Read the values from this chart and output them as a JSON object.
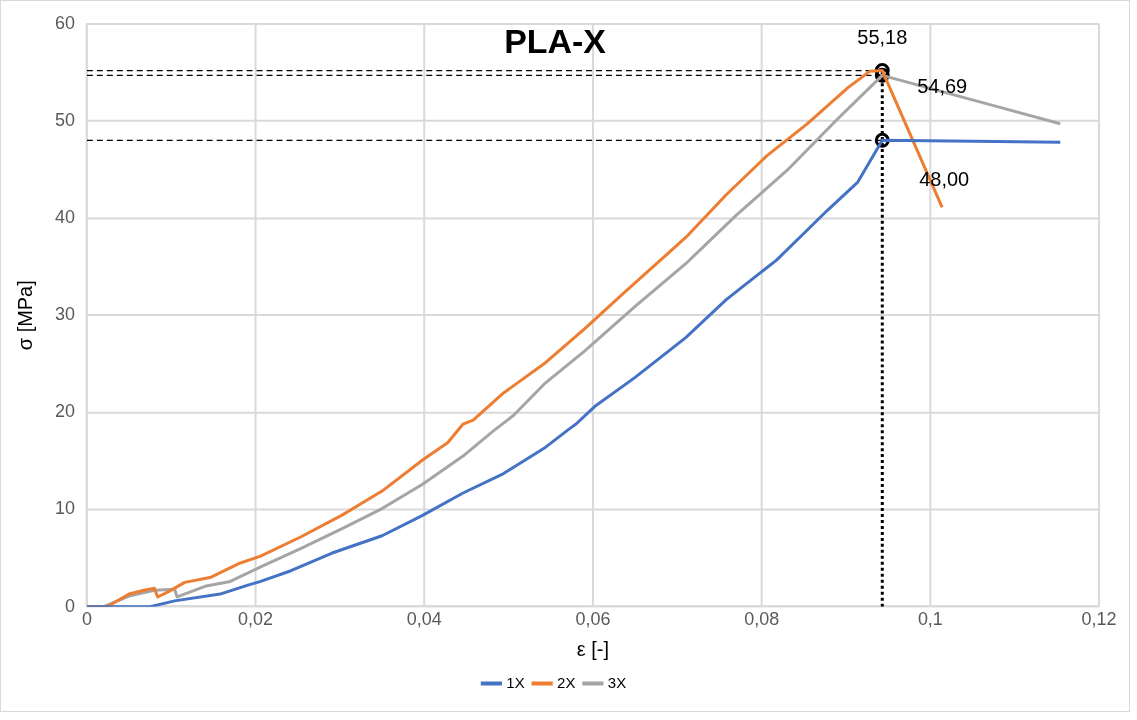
{
  "chart_data": {
    "type": "line",
    "title": "PLA-X",
    "xlabel": "ε [-]",
    "ylabel": "σ [MPa]",
    "xlim": [
      0,
      0.12
    ],
    "xticks": [
      0,
      {
        "value": 0.02,
        "label": "0,02"
      },
      {
        "value": 0.04,
        "label": "0,04"
      },
      {
        "value": 0.06,
        "label": "0,06"
      },
      {
        "value": 0.08,
        "label": "0,08"
      },
      {
        "value": 0.1,
        "label": "0,1"
      },
      {
        "value": 0.12,
        "label": "0,12"
      }
    ],
    "ylim": [
      0,
      60
    ],
    "yticks": [
      0,
      10,
      20,
      30,
      40,
      50,
      60
    ],
    "grid": true,
    "legend": "bottom",
    "marker": "none",
    "line_style": "solid",
    "series": [
      {
        "name": "1X",
        "color": "#4472c4",
        "x": [
          0,
          0.0075,
          0.0104,
          0.0158,
          0.019,
          0.0206,
          0.0242,
          0.029,
          0.035,
          0.0398,
          0.0446,
          0.0494,
          0.0542,
          0.0572,
          0.058,
          0.0602,
          0.065,
          0.071,
          0.0758,
          0.0818,
          0.0878,
          0.0914,
          0.0943,
          0.1154
        ],
        "values": [
          0,
          0,
          0.6,
          1.3,
          2.2,
          2.6,
          3.7,
          5.5,
          7.3,
          9.4,
          11.7,
          13.7,
          16.3,
          18.3,
          18.8,
          20.6,
          23.6,
          27.7,
          31.6,
          35.7,
          40.8,
          43.7,
          48.0,
          47.8
        ]
      },
      {
        "name": "2X",
        "color": "#ed7d31",
        "x": [
          0,
          0.0024,
          0.005,
          0.0068,
          0.008,
          0.0084,
          0.0098,
          0.0116,
          0.0146,
          0.0182,
          0.0206,
          0.0254,
          0.0302,
          0.035,
          0.0398,
          0.0428,
          0.0446,
          0.0458,
          0.0494,
          0.0542,
          0.059,
          0.0638,
          0.071,
          0.0758,
          0.0806,
          0.0854,
          0.0902,
          0.0928,
          0.0943,
          0.1014
        ],
        "values": [
          0,
          0,
          1.3,
          1.7,
          1.9,
          1.0,
          1.6,
          2.5,
          3.0,
          4.5,
          5.2,
          7.2,
          9.4,
          11.9,
          15.1,
          16.9,
          18.8,
          19.2,
          22.0,
          25.0,
          28.6,
          32.4,
          38.0,
          42.4,
          46.4,
          49.7,
          53.4,
          55.1,
          55.18,
          41.1
        ]
      },
      {
        "name": "3X",
        "color": "#a5a5a5",
        "x": [
          0,
          0.002,
          0.005,
          0.008,
          0.0104,
          0.0107,
          0.0122,
          0.014,
          0.017,
          0.0206,
          0.0254,
          0.0302,
          0.035,
          0.0398,
          0.0446,
          0.0482,
          0.0494,
          0.0506,
          0.0542,
          0.059,
          0.065,
          0.071,
          0.077,
          0.083,
          0.089,
          0.0943,
          0.1154
        ],
        "values": [
          0,
          0,
          1.1,
          1.7,
          1.8,
          1.0,
          1.5,
          2.1,
          2.6,
          4.1,
          6.0,
          8.0,
          10.1,
          12.6,
          15.5,
          18.1,
          18.9,
          19.7,
          22.9,
          26.3,
          30.9,
          35.3,
          40.3,
          44.9,
          50.2,
          54.69,
          49.7
        ]
      },
      {
        "type": "line",
        "line_style": "dashed",
        "color": "#000000",
        "x": [
          0,
          0.0943
        ],
        "values": [
          55.18,
          55.18
        ]
      },
      {
        "type": "line",
        "line_style": "dashed",
        "color": "#000000",
        "x": [
          0,
          0.0943
        ],
        "values": [
          54.69,
          54.69
        ]
      },
      {
        "type": "line",
        "line_style": "dashed",
        "color": "#000000",
        "x": [
          0,
          0.0943
        ],
        "values": [
          48.0,
          48.0
        ]
      },
      {
        "type": "line",
        "line_style": "dotted",
        "color": "#000000",
        "x": [
          0.0943,
          0.0943
        ],
        "values": [
          0,
          55.18
        ]
      },
      {
        "type": "scatter",
        "marker": "circle",
        "color": "#000000",
        "x": [
          0.0943,
          0.0943,
          0.0943
        ],
        "values": [
          55.18,
          54.69,
          48.0
        ],
        "value_labels": [
          "55,18",
          "54,69",
          "48,00"
        ]
      }
    ]
  }
}
